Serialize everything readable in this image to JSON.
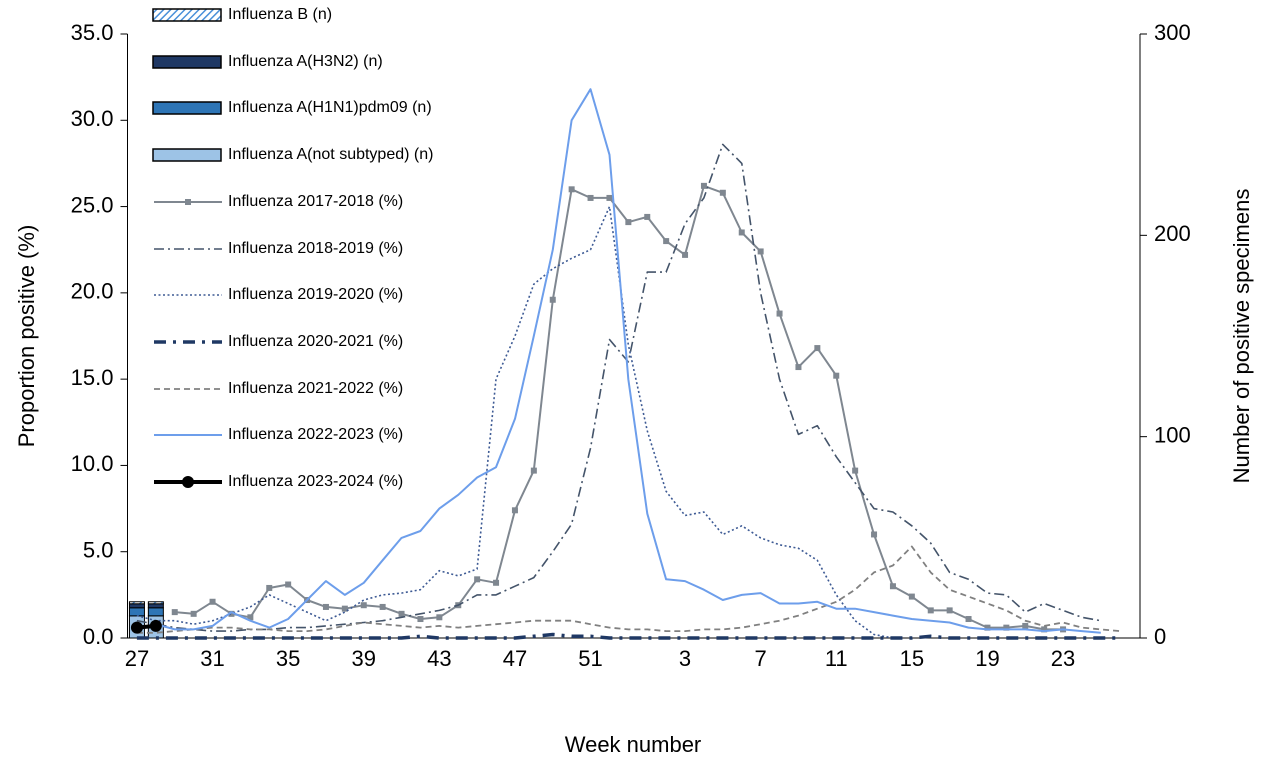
{
  "chart_data": {
    "type": "combo",
    "x_label": "Week number",
    "y_label": "Proportion positive (%)",
    "y2_label": "Number of positive specimens",
    "categories": [
      "27",
      null,
      null,
      null,
      "31",
      null,
      null,
      null,
      "35",
      null,
      null,
      null,
      "39",
      null,
      null,
      null,
      "43",
      null,
      null,
      null,
      "47",
      null,
      null,
      null,
      "51",
      null,
      null,
      null,
      null,
      "3",
      null,
      null,
      null,
      "7",
      null,
      null,
      null,
      "11",
      null,
      null,
      null,
      "15",
      null,
      null,
      null,
      "19",
      null,
      null,
      null,
      "23",
      null,
      null,
      null
    ],
    "ylim": [
      0,
      35
    ],
    "yticks": [
      {
        "value": 0,
        "label": "0.0"
      },
      {
        "value": 5,
        "label": "5.0"
      },
      {
        "value": 10,
        "label": "10.0"
      },
      {
        "value": 15,
        "label": "15.0"
      },
      {
        "value": 20,
        "label": "20.0"
      },
      {
        "value": 25,
        "label": "25.0"
      },
      {
        "value": 30,
        "label": "30.0"
      },
      {
        "value": 35,
        "label": "35.0"
      }
    ],
    "y2lim": [
      0,
      300
    ],
    "y2ticks": [
      0,
      100,
      200,
      300
    ],
    "series": [
      {
        "name": "Influenza B (n)",
        "type": "bar",
        "axis": "y2",
        "color": "#4a90d9",
        "pattern": "hatched",
        "values": [
          1,
          1,
          null,
          null,
          null,
          null,
          null,
          null,
          null,
          null,
          null,
          null,
          null,
          null,
          null,
          null,
          null,
          null,
          null,
          null,
          null,
          null,
          null,
          null,
          null,
          null,
          null,
          null,
          null,
          null,
          null,
          null,
          null,
          null,
          null,
          null,
          null,
          null,
          null,
          null,
          null,
          null,
          null,
          null,
          null,
          null,
          null,
          null,
          null,
          null,
          null,
          null,
          null
        ]
      },
      {
        "name": "Influenza A(H3N2) (n)",
        "type": "bar",
        "axis": "y2",
        "color": "#1f3864",
        "values": [
          2,
          2,
          null,
          null,
          null,
          null,
          null,
          null,
          null,
          null,
          null,
          null,
          null,
          null,
          null,
          null,
          null,
          null,
          null,
          null,
          null,
          null,
          null,
          null,
          null,
          null,
          null,
          null,
          null,
          null,
          null,
          null,
          null,
          null,
          null,
          null,
          null,
          null,
          null,
          null,
          null,
          null,
          null,
          null,
          null,
          null,
          null,
          null,
          null,
          null,
          null,
          null,
          null
        ]
      },
      {
        "name": "Influenza A(H1N1)pdm09 (n)",
        "type": "bar",
        "axis": "y2",
        "color": "#2e75b6",
        "values": [
          4,
          4,
          null,
          null,
          null,
          null,
          null,
          null,
          null,
          null,
          null,
          null,
          null,
          null,
          null,
          null,
          null,
          null,
          null,
          null,
          null,
          null,
          null,
          null,
          null,
          null,
          null,
          null,
          null,
          null,
          null,
          null,
          null,
          null,
          null,
          null,
          null,
          null,
          null,
          null,
          null,
          null,
          null,
          null,
          null,
          null,
          null,
          null,
          null,
          null,
          null,
          null,
          null
        ]
      },
      {
        "name": "Influenza A(not subtyped) (n)",
        "type": "bar",
        "axis": "y2",
        "color": "#9dc3e6",
        "values": [
          11,
          11,
          null,
          null,
          null,
          null,
          null,
          null,
          null,
          null,
          null,
          null,
          null,
          null,
          null,
          null,
          null,
          null,
          null,
          null,
          null,
          null,
          null,
          null,
          null,
          null,
          null,
          null,
          null,
          null,
          null,
          null,
          null,
          null,
          null,
          null,
          null,
          null,
          null,
          null,
          null,
          null,
          null,
          null,
          null,
          null,
          null,
          null,
          null,
          null,
          null,
          null,
          null
        ]
      },
      {
        "name": "Influenza 2017-2018 (%)",
        "type": "line",
        "color": "#7f8790",
        "style": "solid",
        "marker": "square",
        "values": [
          null,
          null,
          1.5,
          1.4,
          2.1,
          1.4,
          1.2,
          2.9,
          3.1,
          2.2,
          1.8,
          1.7,
          1.9,
          1.8,
          1.4,
          1.1,
          1.2,
          1.9,
          3.4,
          3.2,
          7.4,
          9.7,
          19.6,
          26.0,
          25.5,
          25.5,
          24.1,
          24.4,
          23.0,
          22.2,
          26.2,
          25.8,
          23.5,
          22.4,
          18.8,
          15.7,
          16.8,
          15.2,
          9.7,
          6.0,
          3.0,
          2.4,
          1.6,
          1.6,
          1.1,
          0.6,
          0.6,
          0.7,
          0.5,
          0.5,
          null,
          null,
          null
        ]
      },
      {
        "name": "Influenza 2018-2019 (%)",
        "type": "line",
        "color": "#44546a",
        "style": "dash-dot",
        "values": [
          1.0,
          0.8,
          0.6,
          0.5,
          0.4,
          0.4,
          0.5,
          0.5,
          0.6,
          0.6,
          0.7,
          0.8,
          0.9,
          1.0,
          1.2,
          1.4,
          1.6,
          1.9,
          2.5,
          2.5,
          3.0,
          3.5,
          5.0,
          6.6,
          11.0,
          17.3,
          16.0,
          21.2,
          21.2,
          24.0,
          25.5,
          28.6,
          27.5,
          20.0,
          15.0,
          11.8,
          12.3,
          10.5,
          9.0,
          7.5,
          7.3,
          6.5,
          5.5,
          3.8,
          3.4,
          2.6,
          2.5,
          1.5,
          2.0,
          1.6,
          1.2,
          1.0,
          null
        ]
      },
      {
        "name": "Influenza 2019-2020 (%)",
        "type": "line",
        "color": "#3d5a94",
        "style": "dotted",
        "values": [
          1.3,
          1.0,
          1.0,
          0.8,
          1.0,
          1.4,
          1.8,
          2.5,
          2.0,
          1.5,
          1.0,
          1.5,
          2.2,
          2.5,
          2.6,
          2.8,
          3.9,
          3.6,
          4.0,
          15.0,
          17.5,
          20.5,
          21.4,
          22.0,
          22.5,
          25.0,
          17.0,
          12.0,
          8.5,
          7.1,
          7.3,
          6.0,
          6.5,
          5.8,
          5.4,
          5.2,
          4.5,
          2.5,
          1.0,
          0.2,
          0.0,
          null,
          null,
          null,
          null,
          null,
          null,
          null,
          null,
          null,
          null,
          null,
          null
        ]
      },
      {
        "name": "Influenza 2020-2021 (%)",
        "type": "line",
        "color": "#1f3864",
        "style": "dash-dot-bold",
        "values": [
          0.0,
          0.0,
          0.0,
          0.0,
          0.0,
          0.0,
          0.0,
          0.0,
          0.0,
          0.0,
          0.0,
          0.0,
          0.0,
          0.0,
          0.0,
          0.1,
          0.0,
          0.0,
          0.0,
          0.0,
          0.0,
          0.1,
          0.2,
          0.1,
          0.1,
          0.0,
          0.0,
          0.0,
          0.0,
          0.0,
          0.0,
          0.0,
          0.0,
          0.0,
          0.0,
          0.0,
          0.0,
          0.0,
          0.0,
          0.0,
          0.0,
          0.0,
          0.1,
          0.0,
          0.0,
          0.0,
          0.0,
          0.0,
          0.0,
          0.0,
          0.0,
          0.0,
          0.0
        ]
      },
      {
        "name": "Influenza 2021-2022 (%)",
        "type": "line",
        "color": "#808080",
        "style": "dashed",
        "values": [
          0.3,
          0.3,
          0.4,
          0.5,
          0.6,
          0.6,
          0.5,
          0.5,
          0.4,
          0.4,
          0.5,
          0.7,
          0.9,
          0.8,
          0.7,
          0.6,
          0.7,
          0.6,
          0.7,
          0.8,
          0.9,
          1.0,
          1.0,
          1.0,
          0.8,
          0.6,
          0.5,
          0.5,
          0.4,
          0.4,
          0.5,
          0.5,
          0.6,
          0.8,
          1.0,
          1.3,
          1.7,
          2.1,
          2.8,
          3.8,
          4.2,
          5.3,
          3.8,
          2.8,
          2.4,
          2.0,
          1.6,
          1.0,
          0.7,
          0.9,
          0.6,
          0.5,
          0.4
        ]
      },
      {
        "name": "Influenza 2022-2023 (%)",
        "type": "line",
        "color": "#6d9eeb",
        "style": "solid",
        "values": [
          null,
          0.8,
          0.5,
          0.5,
          0.7,
          1.5,
          1.0,
          0.6,
          1.1,
          2.2,
          3.3,
          2.5,
          3.2,
          4.5,
          5.8,
          6.2,
          7.5,
          8.3,
          9.3,
          9.9,
          12.7,
          17.5,
          22.5,
          30.0,
          31.8,
          28.0,
          15.0,
          7.2,
          3.4,
          3.3,
          2.8,
          2.2,
          2.5,
          2.6,
          2.0,
          2.0,
          2.1,
          1.7,
          1.7,
          1.5,
          1.3,
          1.1,
          1.0,
          0.9,
          0.6,
          0.5,
          0.5,
          0.5,
          0.4,
          0.5,
          0.4,
          0.3,
          null
        ]
      },
      {
        "name": "Influenza 2023-2024 (%)",
        "type": "line",
        "color": "#000000",
        "style": "bold",
        "marker": "circle",
        "values": [
          0.6,
          0.7,
          null,
          null,
          null,
          null,
          null,
          null,
          null,
          null,
          null,
          null,
          null,
          null,
          null,
          null,
          null,
          null,
          null,
          null,
          null,
          null,
          null,
          null,
          null,
          null,
          null,
          null,
          null,
          null,
          null,
          null,
          null,
          null,
          null,
          null,
          null,
          null,
          null,
          null,
          null,
          null,
          null,
          null,
          null,
          null,
          null,
          null,
          null,
          null,
          null,
          null,
          null
        ]
      }
    ]
  }
}
